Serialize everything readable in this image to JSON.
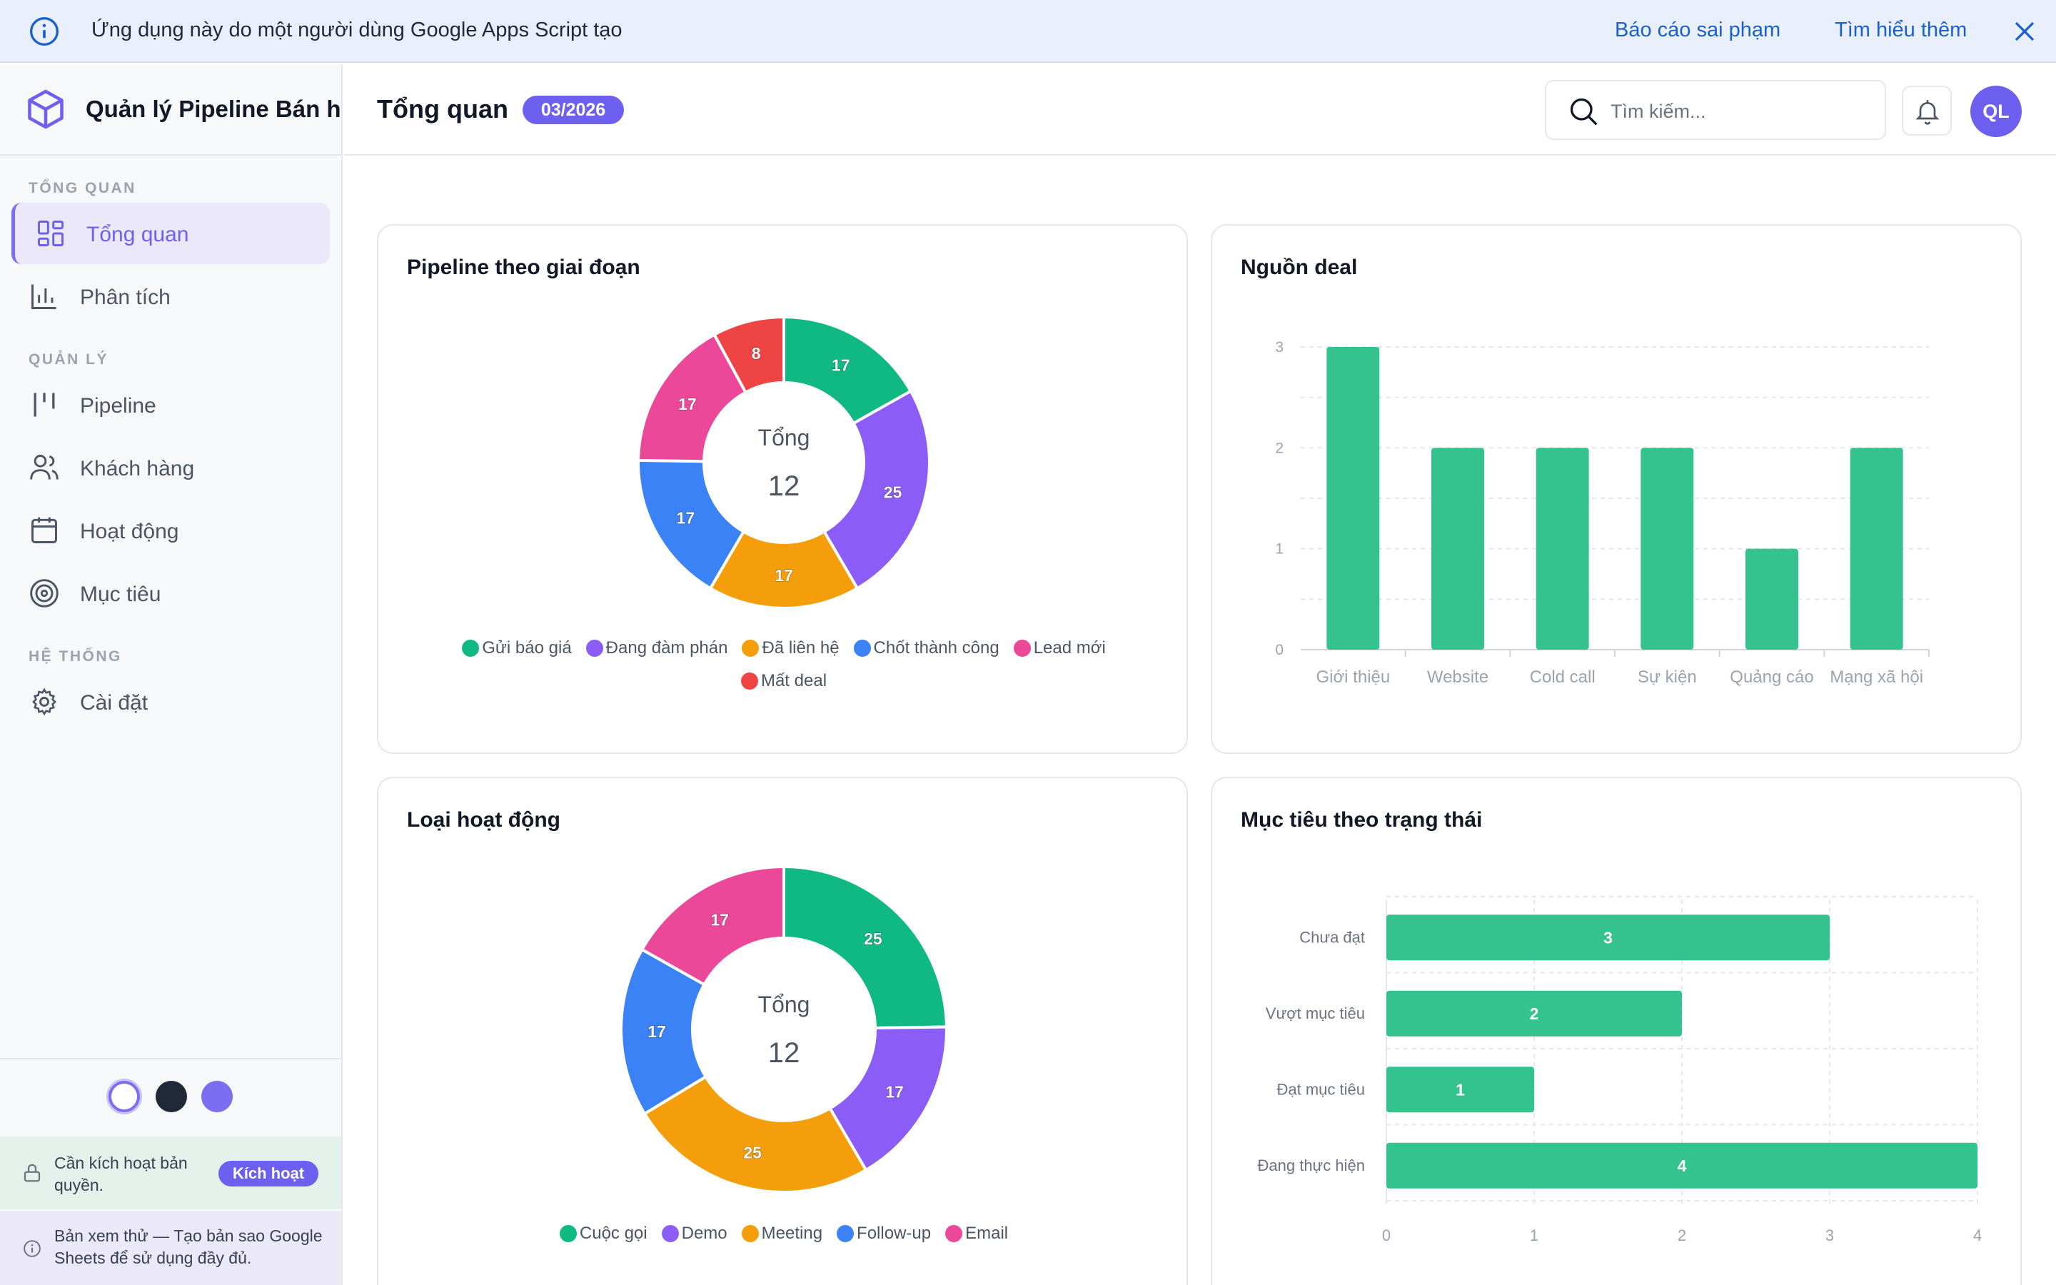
{
  "banner": {
    "message": "Ứng dụng này do một người dùng Google Apps Script tạo",
    "report_link": "Báo cáo sai phạm",
    "learn_link": "Tìm hiểu thêm"
  },
  "sidebar": {
    "app_title": "Quản lý Pipeline Bán hàng",
    "sections": {
      "overview": "TỔNG QUAN",
      "manage": "QUẢN LÝ",
      "system": "HỆ THỐNG"
    },
    "items": [
      {
        "label": "Tổng quan",
        "icon": "grid-icon"
      },
      {
        "label": "Phân tích",
        "icon": "bar-chart-icon"
      },
      {
        "label": "Pipeline",
        "icon": "columns-icon"
      },
      {
        "label": "Khách hàng",
        "icon": "users-icon"
      },
      {
        "label": "Hoạt động",
        "icon": "calendar-icon"
      },
      {
        "label": "Mục tiêu",
        "icon": "target-icon"
      },
      {
        "label": "Cài đặt",
        "icon": "gear-icon"
      }
    ],
    "license_text": "Cần kích hoạt bản quyền.",
    "activate_label": "Kích hoạt",
    "preview_text": "Bản xem thử — Tạo bản sao Google Sheets để sử dụng đầy đủ."
  },
  "header": {
    "title": "Tổng quan",
    "period": "03/2026",
    "search_placeholder": "Tìm kiếm...",
    "avatar_initials": "QL"
  },
  "colors": {
    "accent": "#6d5ff0",
    "green": "#10b981",
    "purple": "#8b5cf6",
    "orange": "#f59e0b",
    "blue": "#3b82f6",
    "pink": "#ec4899",
    "red": "#ef4444",
    "bar": "#34c38f"
  },
  "chart_data": [
    {
      "type": "pie",
      "title": "Pipeline theo giai đoạn",
      "center_label": "Tổng",
      "center_value": "12",
      "categories": [
        "Gửi báo giá",
        "Đang đàm phán",
        "Đã liên hệ",
        "Chốt thành công",
        "Lead mới",
        "Mất deal"
      ],
      "values": [
        17,
        25,
        17,
        17,
        17,
        8
      ],
      "colors": [
        "#10b981",
        "#8b5cf6",
        "#f59e0b",
        "#3b82f6",
        "#ec4899",
        "#ef4444"
      ]
    },
    {
      "type": "bar",
      "title": "Nguồn deal",
      "categories": [
        "Giới thiệu",
        "Website",
        "Cold call",
        "Sự kiện",
        "Quảng cáo",
        "Mạng xã hội"
      ],
      "values": [
        3,
        2,
        2,
        2,
        1,
        2
      ],
      "ylim": [
        0,
        3
      ],
      "yticks": [
        0,
        1,
        2,
        3
      ]
    },
    {
      "type": "pie",
      "title": "Loại hoạt động",
      "center_label": "Tổng",
      "center_value": "12",
      "categories": [
        "Cuộc gọi",
        "Demo",
        "Meeting",
        "Follow-up",
        "Email"
      ],
      "values": [
        25,
        17,
        25,
        17,
        17
      ],
      "colors": [
        "#10b981",
        "#8b5cf6",
        "#f59e0b",
        "#3b82f6",
        "#ec4899"
      ]
    },
    {
      "type": "bar",
      "orientation": "horizontal",
      "title": "Mục tiêu theo trạng thái",
      "categories": [
        "Chưa đạt",
        "Vượt mục tiêu",
        "Đạt mục tiêu",
        "Đang thực hiện"
      ],
      "values": [
        3,
        2,
        1,
        4
      ],
      "xlim": [
        0,
        4
      ],
      "xticks": [
        0,
        1,
        2,
        3,
        4
      ]
    }
  ]
}
